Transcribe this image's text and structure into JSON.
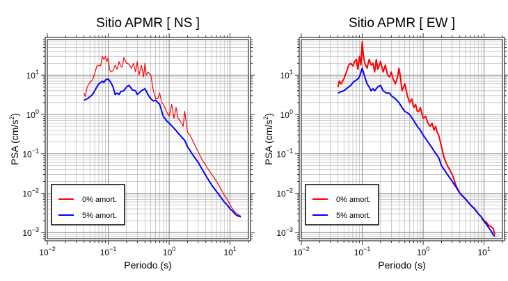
{
  "chart_data": [
    {
      "type": "line",
      "title": "Sitio APMR [ NS ]",
      "xlabel": "Periodo (s)",
      "ylabel_main": "PSA (cm/s",
      "ylabel_exp": "2",
      "ylabel_close": ")",
      "xscale": "log",
      "yscale": "log",
      "xlim": [
        0.01,
        20
      ],
      "ylim": [
        0.0007,
        80
      ],
      "grid": true,
      "legend_position": "bottom-left",
      "x_ticks": [
        {
          "base": "10",
          "exp": "−2",
          "value": 0.01
        },
        {
          "base": "10",
          "exp": "−1",
          "value": 0.1
        },
        {
          "base": "10",
          "exp": "0",
          "value": 1
        },
        {
          "base": "10",
          "exp": "1",
          "value": 10
        }
      ],
      "y_ticks": [
        {
          "base": "10",
          "exp": "−3",
          "value": 0.001
        },
        {
          "base": "10",
          "exp": "−2",
          "value": 0.01
        },
        {
          "base": "10",
          "exp": "−1",
          "value": 0.1
        },
        {
          "base": "10",
          "exp": "0",
          "value": 1
        },
        {
          "base": "10",
          "exp": "1",
          "value": 10
        }
      ],
      "series": [
        {
          "name": "0% amort.",
          "color": "#ff0000",
          "width": 1.2,
          "x": [
            0.04,
            0.042,
            0.045,
            0.05,
            0.055,
            0.06,
            0.065,
            0.07,
            0.075,
            0.08,
            0.085,
            0.09,
            0.095,
            0.1,
            0.105,
            0.11,
            0.12,
            0.13,
            0.14,
            0.15,
            0.16,
            0.17,
            0.18,
            0.2,
            0.22,
            0.24,
            0.26,
            0.28,
            0.3,
            0.32,
            0.35,
            0.38,
            0.4,
            0.42,
            0.45,
            0.5,
            0.55,
            0.6,
            0.65,
            0.7,
            0.75,
            0.8,
            0.85,
            0.9,
            1.0,
            1.1,
            1.2,
            1.3,
            1.4,
            1.5,
            1.6,
            1.7,
            1.8,
            2.0,
            2.2,
            2.5,
            3.0,
            3.5,
            4.0,
            5.0,
            6.0,
            7.0,
            8.0,
            9.0,
            10.0,
            11.0,
            12.0,
            13.0,
            14.0,
            15.0
          ],
          "y": [
            3.5,
            2.8,
            5,
            6.5,
            7.5,
            11,
            17,
            18,
            17,
            30,
            25,
            30,
            22,
            28,
            14,
            12,
            13,
            18,
            14,
            22,
            17,
            16,
            28,
            20,
            19,
            15,
            20,
            12,
            22,
            10,
            18,
            9,
            20,
            10,
            12,
            10,
            4,
            2.5,
            2.5,
            3.5,
            2,
            1.8,
            1.5,
            1.2,
            0.9,
            1.8,
            0.8,
            1.5,
            0.8,
            0.7,
            0.6,
            0.5,
            1.2,
            0.35,
            0.3,
            0.2,
            0.11,
            0.07,
            0.05,
            0.03,
            0.02,
            0.013,
            0.009,
            0.007,
            0.005,
            0.004,
            0.0033,
            0.003,
            0.0028,
            0.0026
          ]
        },
        {
          "name": "5% amort.",
          "color": "#0000ff",
          "width": 2.0,
          "x": [
            0.04,
            0.045,
            0.05,
            0.055,
            0.06,
            0.065,
            0.07,
            0.075,
            0.08,
            0.085,
            0.09,
            0.1,
            0.11,
            0.12,
            0.13,
            0.14,
            0.15,
            0.16,
            0.18,
            0.2,
            0.22,
            0.25,
            0.28,
            0.3,
            0.35,
            0.4,
            0.45,
            0.5,
            0.55,
            0.6,
            0.7,
            0.8,
            0.9,
            1.0,
            1.2,
            1.5,
            1.8,
            2.0,
            2.5,
            3.0,
            3.5,
            4.0,
            5.0,
            6.0,
            7.0,
            8.0,
            9.0,
            10.0,
            11.0,
            12.0,
            13.0,
            14.0,
            15.0
          ],
          "y": [
            2.3,
            2.5,
            2.8,
            3.2,
            4,
            5,
            6,
            6.5,
            7,
            6.5,
            7.5,
            8,
            6.5,
            5,
            3.2,
            3.5,
            3.2,
            3.8,
            4,
            5,
            5.5,
            4.2,
            4,
            3.2,
            4,
            4.5,
            3.2,
            2.5,
            2.2,
            2.3,
            1.8,
            0.9,
            0.7,
            0.6,
            0.45,
            0.3,
            0.22,
            0.15,
            0.09,
            0.06,
            0.04,
            0.028,
            0.016,
            0.011,
            0.008,
            0.006,
            0.005,
            0.004,
            0.0035,
            0.003,
            0.0027,
            0.0026,
            0.0025
          ]
        }
      ]
    },
    {
      "type": "line",
      "title": "Sitio APMR [ EW ]",
      "xlabel": "Periodo (s)",
      "ylabel_main": "PSA (cm/s",
      "ylabel_exp": "2",
      "ylabel_close": ")",
      "xscale": "log",
      "yscale": "log",
      "xlim": [
        0.01,
        20
      ],
      "ylim": [
        0.0007,
        80
      ],
      "grid": true,
      "legend_position": "bottom-left",
      "x_ticks": [
        {
          "base": "10",
          "exp": "−2",
          "value": 0.01
        },
        {
          "base": "10",
          "exp": "−1",
          "value": 0.1
        },
        {
          "base": "10",
          "exp": "0",
          "value": 1
        },
        {
          "base": "10",
          "exp": "1",
          "value": 10
        }
      ],
      "y_ticks": [
        {
          "base": "10",
          "exp": "−3",
          "value": 0.001
        },
        {
          "base": "10",
          "exp": "−2",
          "value": 0.01
        },
        {
          "base": "10",
          "exp": "−1",
          "value": 0.1
        },
        {
          "base": "10",
          "exp": "0",
          "value": 1
        },
        {
          "base": "10",
          "exp": "1",
          "value": 10
        }
      ],
      "series": [
        {
          "name": "0% amort.",
          "color": "#ff0000",
          "width": 2.0,
          "x": [
            0.04,
            0.042,
            0.045,
            0.05,
            0.055,
            0.06,
            0.065,
            0.07,
            0.075,
            0.08,
            0.085,
            0.09,
            0.095,
            0.1,
            0.105,
            0.11,
            0.12,
            0.13,
            0.14,
            0.15,
            0.16,
            0.17,
            0.18,
            0.2,
            0.22,
            0.24,
            0.26,
            0.28,
            0.3,
            0.32,
            0.35,
            0.38,
            0.4,
            0.42,
            0.45,
            0.5,
            0.55,
            0.6,
            0.65,
            0.7,
            0.75,
            0.8,
            0.85,
            0.9,
            1.0,
            1.1,
            1.2,
            1.3,
            1.4,
            1.5,
            1.6,
            1.7,
            1.8,
            2.0,
            2.2,
            2.5,
            3.0,
            3.5,
            4.0,
            5.0,
            6.0,
            7.0,
            8.0,
            9.0,
            10.0,
            11.0,
            12.0,
            13.0,
            14.0,
            15.0
          ],
          "y": [
            5,
            7,
            6,
            8,
            12,
            18,
            20,
            17,
            22,
            25,
            14,
            30,
            18,
            70,
            30,
            20,
            15,
            25,
            18,
            20,
            12,
            25,
            14,
            22,
            12,
            18,
            10,
            9,
            12,
            8,
            6,
            9,
            15,
            10,
            4,
            6,
            3,
            2,
            2.5,
            1.5,
            1.8,
            1.2,
            1.2,
            1.5,
            0.8,
            0.9,
            0.6,
            0.5,
            0.6,
            0.4,
            0.5,
            0.35,
            0.3,
            0.15,
            0.08,
            0.05,
            0.03,
            0.015,
            0.01,
            0.007,
            0.005,
            0.004,
            0.003,
            0.0025,
            0.002,
            0.0018,
            0.0015,
            0.0014,
            0.0013,
            0.0009
          ]
        },
        {
          "name": "5% amort.",
          "color": "#0000ff",
          "width": 2.0,
          "x": [
            0.04,
            0.045,
            0.05,
            0.055,
            0.06,
            0.065,
            0.07,
            0.075,
            0.08,
            0.085,
            0.09,
            0.1,
            0.11,
            0.12,
            0.13,
            0.14,
            0.15,
            0.16,
            0.18,
            0.2,
            0.22,
            0.25,
            0.28,
            0.3,
            0.35,
            0.4,
            0.45,
            0.5,
            0.55,
            0.6,
            0.7,
            0.8,
            0.9,
            1.0,
            1.2,
            1.5,
            1.8,
            2.0,
            2.5,
            3.0,
            3.5,
            4.0,
            5.0,
            6.0,
            7.0,
            8.0,
            9.0,
            10.0,
            11.0,
            12.0,
            13.0,
            14.0,
            15.0
          ],
          "y": [
            3.5,
            3.8,
            4,
            4.5,
            5,
            5.5,
            6.5,
            7,
            7.5,
            8,
            9,
            15,
            9,
            6,
            5,
            4,
            4.5,
            4,
            5,
            5.5,
            4,
            3.5,
            3.5,
            3,
            2.5,
            2,
            1.5,
            1.2,
            1.1,
            1,
            0.7,
            0.5,
            0.4,
            0.3,
            0.2,
            0.12,
            0.08,
            0.05,
            0.03,
            0.02,
            0.014,
            0.01,
            0.007,
            0.005,
            0.004,
            0.003,
            0.0025,
            0.0019,
            0.0016,
            0.0013,
            0.0011,
            0.0009,
            0.0008
          ]
        }
      ]
    }
  ]
}
